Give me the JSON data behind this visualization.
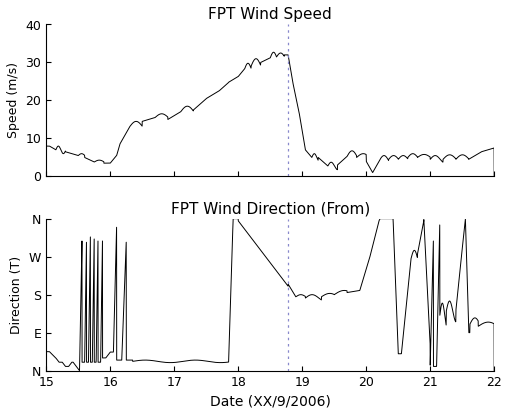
{
  "title_speed": "FPT Wind Speed",
  "title_dir": "FPT Wind Direction (From)",
  "xlabel": "Date (XX/9/2006)",
  "ylabel_speed": "Speed (m/s)",
  "ylabel_dir": "Direction (T)",
  "xlim": [
    15,
    22
  ],
  "ylim_speed": [
    0,
    40
  ],
  "ylim_dir": [
    0,
    360
  ],
  "xticks": [
    15,
    16,
    17,
    18,
    19,
    20,
    21,
    22
  ],
  "yticks_speed": [
    0,
    10,
    20,
    30,
    40
  ],
  "yticks_dir": [
    0,
    90,
    180,
    270,
    360
  ],
  "yticklabels_dir": [
    "N",
    "E",
    "S",
    "W",
    "N"
  ],
  "landfall_x": 18.78,
  "line_color": "#000000",
  "landfall_color": "#8888cc",
  "figsize": [
    5.09,
    4.15
  ],
  "dpi": 100
}
